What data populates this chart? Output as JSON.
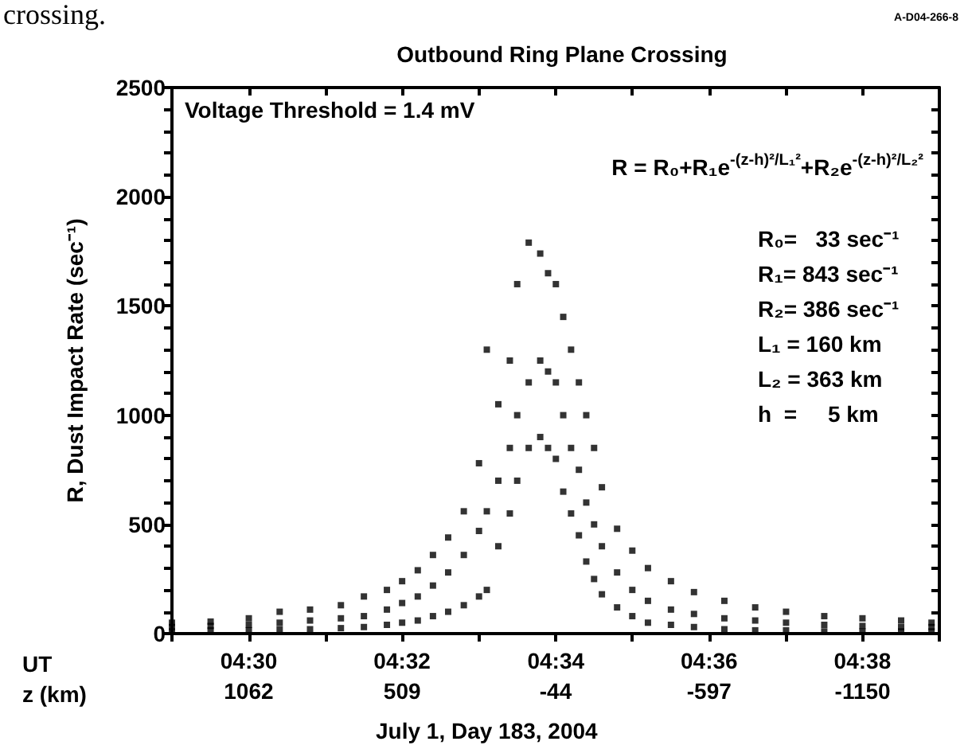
{
  "chart_data": {
    "type": "scatter",
    "title": "Outbound Ring Plane Crossing",
    "xlabel": "UT",
    "x2label": "z (km)",
    "ylabel": "R, Dust Impact Rate (sec⁻¹)",
    "annotations": [
      "crossing.",
      "A-D04-266-8",
      "Voltage Threshold = 1.4 mV",
      "R = R₀+R₁e$^{-(z-h)²/L₁²}$+R₂e$^{-(z-h)²/L₂²}$",
      "R₀=   33 sec⁻¹",
      "R₁= 843 sec⁻¹",
      "R₂= 386 sec⁻¹",
      "L₁ = 160 km",
      "L₂ = 363 km",
      "h  =     5 km",
      "July 1, Day 183, 2004"
    ],
    "marker": "square",
    "grid": false,
    "xlim": [
      4.4833,
      4.65
    ],
    "xticks": [
      {
        "value": 4.4833,
        "label": null
      },
      {
        "value": 4.5,
        "label": "04:30"
      },
      {
        "value": 4.5167,
        "label": null
      },
      {
        "value": 4.5333,
        "label": "04:32"
      },
      {
        "value": 4.55,
        "label": null
      },
      {
        "value": 4.5667,
        "label": "04:34"
      },
      {
        "value": 4.5833,
        "label": null
      },
      {
        "value": 4.6,
        "label": "04:36"
      },
      {
        "value": 4.6167,
        "label": null
      },
      {
        "value": 4.6333,
        "label": "04:38"
      },
      {
        "value": 4.65,
        "label": null
      }
    ],
    "x2lim": [
      1338.5,
      -1426.5
    ],
    "x2ticks": [
      1062,
      509,
      -44,
      -597,
      -1150
    ],
    "ylim": [
      0,
      2500
    ],
    "yticks": [
      0,
      {
        "value": 100,
        "label": null
      },
      {
        "value": 200,
        "label": null
      },
      {
        "value": 300,
        "label": null
      },
      {
        "value": 400,
        "label": null
      },
      500,
      {
        "value": 600,
        "label": null
      },
      {
        "value": 700,
        "label": null
      },
      {
        "value": 800,
        "label": null
      },
      {
        "value": 900,
        "label": null
      },
      1000,
      {
        "value": 1100,
        "label": null
      },
      {
        "value": 1200,
        "label": null
      },
      {
        "value": 1300,
        "label": null
      },
      {
        "value": 1400,
        "label": null
      },
      1500,
      {
        "value": 1600,
        "label": null
      },
      {
        "value": 1700,
        "label": null
      },
      {
        "value": 1800,
        "label": null
      },
      {
        "value": 1900,
        "label": null
      },
      2000,
      {
        "value": 2100,
        "label": null
      },
      {
        "value": 2200,
        "label": null
      },
      {
        "value": 2300,
        "label": null
      },
      {
        "value": 2400,
        "label": null
      },
      2500
    ],
    "series": [
      {
        "color": "#000000",
        "x": [
          4.4833,
          4.4833,
          4.4833,
          4.4917,
          4.4917,
          4.4917,
          4.5,
          4.5,
          4.5,
          4.5067,
          4.5067,
          4.5067,
          4.5133,
          4.5133,
          4.5133,
          4.52,
          4.52,
          4.52,
          4.525,
          4.525,
          4.525,
          4.53,
          4.53,
          4.53,
          4.5333,
          4.5333,
          4.5333,
          4.5367,
          4.5367,
          4.5367,
          4.54,
          4.54,
          4.54,
          4.5433,
          4.5433,
          4.5433,
          4.5467,
          4.5467,
          4.5467,
          4.55,
          4.55,
          4.55,
          4.5517,
          4.5517,
          4.5517,
          4.5542,
          4.5542,
          4.5542,
          4.5567,
          4.5567,
          4.5567,
          4.5583,
          4.5583,
          4.5583,
          4.5608,
          4.5608,
          4.5608,
          4.5633,
          4.5633,
          4.5633,
          4.565,
          4.565,
          4.565,
          4.5667,
          4.5667,
          4.5667,
          4.5683,
          4.5683,
          4.5683,
          4.57,
          4.57,
          4.57,
          4.5717,
          4.5717,
          4.5717,
          4.5733,
          4.5733,
          4.5733,
          4.575,
          4.575,
          4.575,
          4.5767,
          4.5767,
          4.5767,
          4.58,
          4.58,
          4.58,
          4.5833,
          4.5833,
          4.5833,
          4.5867,
          4.5867,
          4.5867,
          4.5917,
          4.5917,
          4.5917,
          4.5967,
          4.5967,
          4.5967,
          4.6033,
          4.6033,
          4.6033,
          4.61,
          4.61,
          4.61,
          4.6167,
          4.6167,
          4.6167,
          4.625,
          4.625,
          4.625,
          4.6333,
          4.6333,
          4.6333,
          4.6417,
          4.6417,
          4.6417,
          4.6483,
          4.6483,
          4.6483
        ],
        "values": [
          10,
          30,
          50,
          15,
          35,
          55,
          15,
          40,
          70,
          20,
          50,
          100,
          20,
          60,
          110,
          25,
          70,
          130,
          30,
          80,
          170,
          40,
          110,
          200,
          50,
          140,
          240,
          60,
          170,
          290,
          80,
          220,
          360,
          100,
          280,
          440,
          130,
          360,
          560,
          170,
          470,
          780,
          200,
          560,
          1300,
          400,
          700,
          1050,
          550,
          850,
          1250,
          700,
          1000,
          1600,
          850,
          1150,
          1790,
          900,
          1250,
          1740,
          850,
          1200,
          1650,
          800,
          1150,
          1600,
          650,
          1000,
          1450,
          550,
          850,
          1300,
          450,
          750,
          1150,
          330,
          600,
          1000,
          250,
          500,
          850,
          180,
          400,
          670,
          120,
          280,
          480,
          80,
          200,
          380,
          50,
          150,
          300,
          40,
          110,
          240,
          30,
          90,
          190,
          20,
          70,
          150,
          15,
          60,
          120,
          15,
          50,
          100,
          10,
          40,
          80,
          10,
          35,
          70,
          10,
          30,
          60,
          10,
          30,
          50
        ]
      }
    ]
  }
}
